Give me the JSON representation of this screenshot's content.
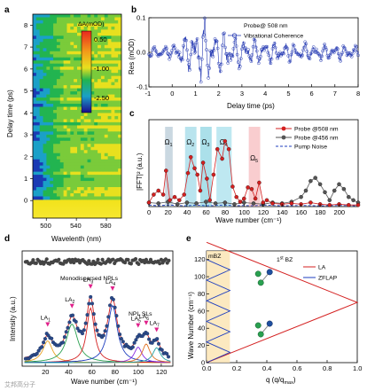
{
  "chart_data": [
    {
      "id": "a",
      "type": "heatmap",
      "panel_label": "a",
      "xlabel": "Wavelenth (nm)",
      "ylabel": "Delay time (ps)",
      "xticks": [
        500,
        540,
        580
      ],
      "yticks": [
        0,
        1,
        2,
        3,
        4,
        5,
        6,
        7,
        8
      ],
      "xlim": [
        482,
        600
      ],
      "ylim": [
        -0.8,
        8.5
      ],
      "colorbar": {
        "title": "ΔA(mOD)",
        "ticks": [
          "0.50",
          "-1.00",
          "-2.50"
        ],
        "range": [
          -3.2,
          1.0
        ]
      },
      "colors": {
        "low": "#1a0a8c",
        "mid": "#22b450",
        "high": "#e8281e",
        "max": "#ffe000"
      }
    },
    {
      "id": "b",
      "type": "line",
      "panel_label": "b",
      "xlabel": "Delay time (ps)",
      "ylabel": "Res (mOD)",
      "xlim": [
        -1,
        8
      ],
      "ylim": [
        -0.1,
        0.1
      ],
      "xticks": [
        -1,
        0,
        1,
        2,
        3,
        4,
        5,
        6,
        7,
        8
      ],
      "yticks": [
        -0.1,
        0.0,
        0.1
      ],
      "text": "Probe@ 508 nm",
      "series": [
        {
          "name": "Vibrational Coherence",
          "color": "#2b3fb5",
          "marker": "open-circle"
        }
      ],
      "approx_envelope": [
        [
          -1,
          0.015
        ],
        [
          0,
          0.02
        ],
        [
          1,
          0.08
        ],
        [
          1.5,
          0.1
        ],
        [
          2,
          0.065
        ],
        [
          3,
          0.045
        ],
        [
          4,
          0.035
        ],
        [
          5,
          0.03
        ],
        [
          6,
          0.028
        ],
        [
          7,
          0.025
        ],
        [
          8,
          0.022
        ]
      ]
    },
    {
      "id": "c",
      "type": "line",
      "panel_label": "c",
      "xlabel": "Wave number (cm⁻¹)",
      "ylabel": "|FFT|² (a.u.)",
      "xlim": [
        0,
        220
      ],
      "xticks": [
        0,
        20,
        40,
        60,
        80,
        100,
        120,
        140,
        160,
        180,
        200
      ],
      "series": [
        {
          "name": "Probe @508 nm",
          "color": "#d42020",
          "x": [
            0,
            5,
            10,
            15,
            18,
            22,
            27,
            32,
            37,
            41,
            44,
            48,
            51,
            54,
            57,
            61,
            64,
            68,
            72,
            77,
            80,
            84,
            88,
            92,
            96,
            100,
            104,
            108,
            112,
            116,
            120,
            124,
            130,
            140,
            150,
            160,
            170,
            180,
            190,
            200,
            210,
            220
          ],
          "values": [
            0.05,
            0.15,
            0.2,
            0.15,
            0.45,
            0.08,
            0.12,
            0.08,
            0.15,
            0.42,
            0.62,
            0.48,
            0.4,
            0.2,
            0.55,
            0.35,
            0.08,
            0.4,
            0.72,
            0.6,
            0.82,
            0.72,
            0.25,
            0.12,
            0.06,
            0.1,
            0.24,
            0.22,
            0.1,
            0.3,
            0.05,
            0.08,
            0.04,
            0.03,
            0.04,
            0.03,
            0.05,
            0.03,
            0.02,
            0.03,
            0.02,
            0.02
          ]
        },
        {
          "name": "Probe @456 nm",
          "color": "#555555",
          "x": [
            0,
            10,
            20,
            30,
            40,
            50,
            60,
            70,
            80,
            90,
            100,
            110,
            120,
            130,
            140,
            150,
            160,
            165,
            170,
            175,
            180,
            185,
            190,
            195,
            200,
            205,
            210,
            215,
            220
          ],
          "values": [
            0.05,
            0.04,
            0.06,
            0.03,
            0.05,
            0.04,
            0.06,
            0.04,
            0.05,
            0.03,
            0.05,
            0.04,
            0.03,
            0.05,
            0.04,
            0.06,
            0.12,
            0.2,
            0.32,
            0.36,
            0.28,
            0.18,
            0.08,
            0.2,
            0.28,
            0.22,
            0.12,
            0.08,
            0.05
          ]
        },
        {
          "name": "Pump Noise",
          "color": "#1f3fbf",
          "style": "dashed",
          "x": [
            0,
            10,
            20,
            30,
            40,
            50,
            60,
            70,
            80,
            90,
            100,
            110,
            120,
            140,
            160,
            180,
            200,
            220
          ],
          "values": [
            0.02,
            0.01,
            0.02,
            0.015,
            0.01,
            0.02,
            0.01,
            0.015,
            0.02,
            0.01,
            0.015,
            0.01,
            0.02,
            0.01,
            0.015,
            0.01,
            0.015,
            0.01
          ]
        }
      ],
      "bands": [
        {
          "label": "Ω1",
          "center": 21,
          "width": 8,
          "color": "#9fb8c8"
        },
        {
          "label": "Ω2",
          "center": 44,
          "width": 12,
          "color": "#7fcde0"
        },
        {
          "label": "Ω3",
          "center": 60,
          "width": 12,
          "color": "#66c6d8"
        },
        {
          "label": "Ω4",
          "center": 79,
          "width": 16,
          "color": "#88d6e6"
        },
        {
          "label": "Ω5",
          "center": 111,
          "width": 12,
          "color": "#f4a4a8"
        }
      ],
      "peak_labels": [
        "Ω",
        "1",
        "Ω",
        "2",
        "Ω",
        "3",
        "Ω",
        "4",
        "Ω",
        "5"
      ]
    },
    {
      "id": "d",
      "type": "scatter",
      "panel_label": "d",
      "xlabel": "Wave number (cm⁻¹)",
      "ylabel": "Intensity (a.u.)",
      "xlim": [
        0,
        130
      ],
      "xticks": [
        20,
        40,
        60,
        80,
        100,
        120
      ],
      "annotations": [
        "Monodispersed NPLs",
        "NPL SLs"
      ],
      "peaks": [
        {
          "label": "LA",
          "sub": "1",
          "x": 22,
          "height": 0.35,
          "width": 5,
          "color": "#e8a020"
        },
        {
          "label": "LA",
          "sub": "2",
          "x": 43,
          "height": 0.62,
          "width": 6,
          "color": "#2aa050"
        },
        {
          "label": "LA",
          "sub": "3",
          "x": 59,
          "height": 0.88,
          "width": 4,
          "color": "#d42020"
        },
        {
          "label": "LA",
          "sub": "4",
          "x": 78,
          "height": 0.92,
          "width": 5,
          "color": "#1f3fbf"
        },
        {
          "label": "LA",
          "sub": "5",
          "x": 100,
          "height": 0.25,
          "width": 4,
          "color": "#8a2be2"
        },
        {
          "label": "LA",
          "sub": "6",
          "x": 107,
          "height": 0.3,
          "width": 4,
          "color": "#e07020"
        },
        {
          "label": "LA",
          "sub": "7",
          "x": 116,
          "height": 0.24,
          "width": 4,
          "color": "#20a0a0"
        }
      ]
    },
    {
      "id": "e",
      "type": "line",
      "panel_label": "e",
      "xlabel": "q (q/q",
      "xlabel_sub": "max",
      "xlabel_end": ")",
      "ylabel": "Wave Number (cm⁻¹)",
      "xlim": [
        0,
        1.0
      ],
      "ylim": [
        0,
        130
      ],
      "xticks": [
        0.0,
        0.2,
        0.4,
        0.6,
        0.8,
        1.0
      ],
      "yticks": [
        0,
        20,
        40,
        60,
        80,
        100,
        120
      ],
      "region_label": "mBZ",
      "bz_label": "1",
      "bz_label_sup": "st",
      "bz_label_end": " BZ",
      "series": [
        {
          "name": "LA",
          "color": "#d42020",
          "x": [
            0,
            1.0,
            0
          ],
          "values": [
            0,
            70,
            140
          ]
        },
        {
          "name": "ZFLAP",
          "color": "#1f3fbf",
          "zigzag_period": 0.155,
          "zigzag_max": 12
        }
      ]
    }
  ],
  "watermark": "艾邦高分子"
}
